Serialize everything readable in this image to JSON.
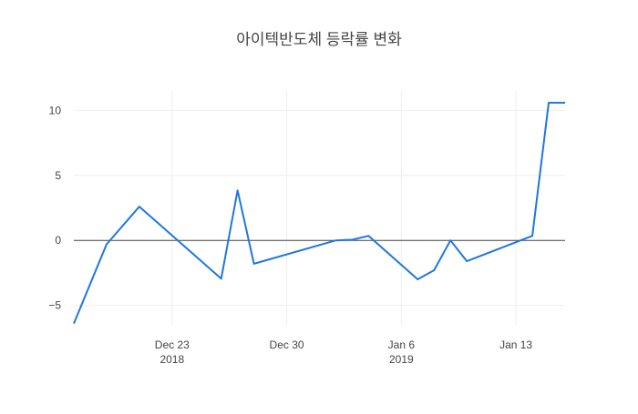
{
  "chart_data": {
    "type": "line",
    "title": "아이텍반도체 등락률 변화",
    "x": [
      "2018-12-17",
      "2018-12-19",
      "2018-12-21",
      "2018-12-26",
      "2018-12-27",
      "2018-12-28",
      "2019-01-02",
      "2019-01-03",
      "2019-01-04",
      "2019-01-07",
      "2019-01-08",
      "2019-01-09",
      "2019-01-10",
      "2019-01-14",
      "2019-01-15",
      "2019-01-16"
    ],
    "series": [
      {
        "color": "#1f77e0",
        "values": [
          -6.4,
          -0.3,
          2.6,
          -2.95,
          3.85,
          -1.8,
          0,
          0.05,
          0.35,
          -3.0,
          -2.3,
          0,
          -1.6,
          0.35,
          10.6,
          10.6
        ]
      }
    ],
    "xlim": [
      "2018-12-17",
      "2019-01-16"
    ],
    "xticks": [
      {
        "value": "2018-12-23",
        "label": "Dec 23",
        "sublabel": "2018"
      },
      {
        "value": "2018-12-30",
        "label": "Dec 30"
      },
      {
        "value": "2019-01-06",
        "label": "Jan 6",
        "sublabel": "2019"
      },
      {
        "value": "2019-01-13",
        "label": "Jan 13"
      }
    ],
    "ylim": [
      -6.5,
      11.5
    ],
    "yticks": [
      {
        "value": -5,
        "label": "−5"
      },
      0,
      5,
      10
    ],
    "grid": true,
    "zeroline": true
  }
}
